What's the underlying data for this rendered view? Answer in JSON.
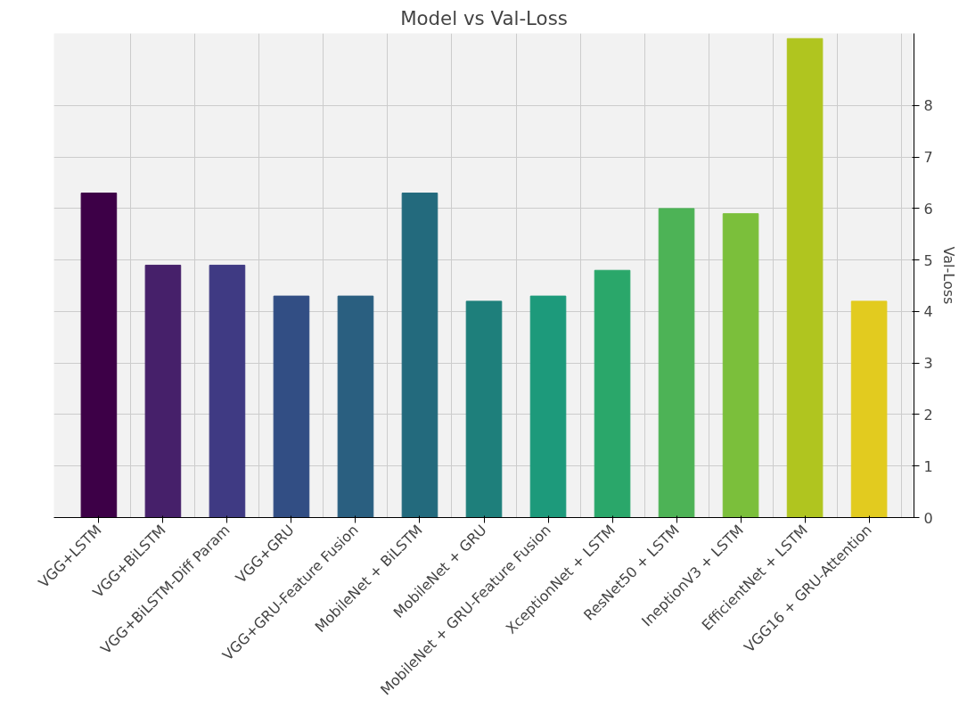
{
  "chart_data": {
    "type": "bar",
    "title": "Model vs Val-Loss",
    "ylabel": "Val-Loss",
    "categories": [
      "VGG+LSTM",
      "VGG+BiLSTM",
      "VGG+BiLSTM-Diff Param",
      "VGG+GRU",
      "VGG+GRU-Feature Fusion",
      "MobileNet + BiLSTM",
      "MobileNet + GRU",
      "MobileNet + GRU-Feature Fusion",
      "XceptionNet + LSTM",
      "ResNet50 + LSTM",
      "IneptionV3 + LSTM",
      "EfficientNet + LSTM",
      "VGG16 + GRU-Attention"
    ],
    "values": [
      6.3,
      4.9,
      4.9,
      4.3,
      4.3,
      6.3,
      4.2,
      4.3,
      4.8,
      6.0,
      5.9,
      9.3,
      4.2
    ],
    "colors": [
      "#3d0047",
      "#46206a",
      "#3f3a83",
      "#324e84",
      "#2a5f80",
      "#236a7d",
      "#1e7f7b",
      "#1d9a7b",
      "#2aa76a",
      "#4db356",
      "#7bbf3b",
      "#b0c51f",
      "#e2cb1f"
    ],
    "ylim": [
      0,
      9.4
    ],
    "yticks": [
      0,
      1,
      2,
      3,
      4,
      5,
      6,
      7,
      8
    ],
    "grid": true
  }
}
